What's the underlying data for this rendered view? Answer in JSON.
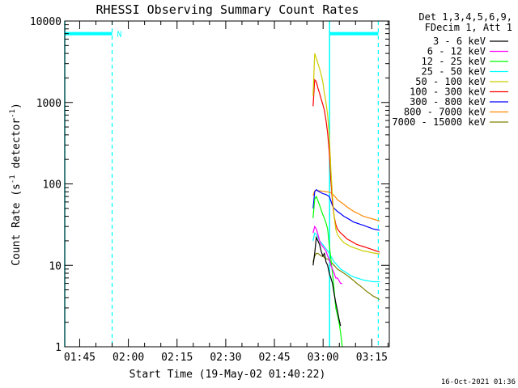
{
  "chart_data": {
    "type": "line",
    "title": "RHESSI Observing Summary Count Rates",
    "xlabel": "Start Time (19-May-02 01:40:22)",
    "ylabel_main": "Count Rate (s",
    "ylabel_sup1": "-1",
    "ylabel_mid": " detector",
    "ylabel_sup2": "-1",
    "ylabel_end": ")",
    "x_unit": "minutes since 01:40:22",
    "xlim": [
      0,
      100
    ],
    "ylim": [
      1,
      10000
    ],
    "yscale": "log",
    "x_ticks": [
      {
        "label": "01:45",
        "value": 4.6
      },
      {
        "label": "02:00",
        "value": 19.6
      },
      {
        "label": "02:15",
        "value": 34.6
      },
      {
        "label": "02:30",
        "value": 49.6
      },
      {
        "label": "02:45",
        "value": 64.6
      },
      {
        "label": "03:00",
        "value": 79.6
      },
      {
        "label": "03:15",
        "value": 94.6
      }
    ],
    "y_ticks": [
      {
        "label": "1",
        "value": 1
      },
      {
        "label": "10",
        "value": 10
      },
      {
        "label": "100",
        "value": 100
      },
      {
        "label": "1000",
        "value": 1000
      },
      {
        "label": "10000",
        "value": 10000
      }
    ],
    "legend_header": [
      "Det 1,3,4,5,6,9,",
      "FDecim 1, Att 1"
    ],
    "legend_position": "right",
    "timestamp": "16-Oct-2021 01:36",
    "flags": {
      "color": "#00ffff",
      "label": "N",
      "bars": [
        {
          "x_start": 0,
          "x_end": 14.6,
          "y": 7000
        },
        {
          "x_start": 81.6,
          "x_end": 96.6,
          "y": 7000
        }
      ],
      "dashed_lines": [
        14.6,
        96.6
      ],
      "solid_lines": [
        0,
        81.6
      ]
    },
    "series": [
      {
        "name": "3 - 6 keV",
        "color": "#000000",
        "x": [
          76.5,
          77,
          77.5,
          78,
          78.5,
          79,
          79.5,
          80,
          80.5,
          81,
          81.5,
          82,
          82.5,
          83,
          83.5,
          84,
          84.5,
          85
        ],
        "y": [
          10,
          14,
          22,
          20,
          18,
          15,
          13,
          14,
          11,
          10,
          8,
          7,
          6,
          4.5,
          3.5,
          2.8,
          2.2,
          1.8
        ]
      },
      {
        "name": "6 - 12 keV",
        "color": "#ff00ff",
        "x": [
          76.5,
          77,
          77.5,
          78,
          78.5,
          79,
          79.5,
          80,
          80.5,
          81,
          81.5,
          82,
          82.5,
          83,
          83.5,
          84,
          84.5,
          85,
          85.5
        ],
        "y": [
          25,
          30,
          28,
          24,
          20,
          18,
          17,
          16,
          15,
          13,
          12,
          10,
          9,
          8,
          7,
          7,
          6.5,
          6,
          6
        ]
      },
      {
        "name": "12 - 25 keV",
        "color": "#00ff00",
        "x": [
          76.5,
          77,
          77.5,
          78,
          78.5,
          79,
          79.5,
          80,
          80.5,
          81,
          81.5,
          82,
          82.5,
          83,
          83.5,
          84,
          84.5,
          85,
          85.5
        ],
        "y": [
          38,
          65,
          70,
          62,
          55,
          48,
          42,
          38,
          33,
          28,
          18,
          12,
          8,
          5,
          3,
          2.5,
          2,
          1.5,
          1
        ]
      },
      {
        "name": "25 - 50 keV",
        "color": "#00ffff",
        "x": [
          76.5,
          77,
          77.5,
          78,
          78.5,
          79,
          79.5,
          80,
          80.5,
          81,
          81.5,
          82,
          82.5,
          83,
          83.5,
          84,
          84.5,
          85,
          86,
          87,
          88,
          89,
          90,
          91,
          92,
          93,
          94,
          95,
          96,
          97
        ],
        "y": [
          20,
          25,
          24,
          22,
          20,
          19,
          18,
          17,
          16,
          15,
          14,
          13,
          12,
          11,
          10.5,
          10,
          9.5,
          9,
          8.5,
          8,
          7.5,
          7.2,
          7,
          6.8,
          6.6,
          6.5,
          6.4,
          6.3,
          6.3,
          6.3
        ]
      },
      {
        "name": "50 - 100 keV",
        "color": "#cccc00",
        "x": [
          76.5,
          77,
          77.5,
          78,
          78.5,
          79,
          79.5,
          80,
          80.5,
          81,
          81.5,
          82,
          82.5,
          83,
          83.5,
          84,
          85,
          86,
          87,
          88,
          89,
          90,
          91,
          92,
          93,
          94,
          95,
          96,
          97
        ],
        "y": [
          1200,
          4000,
          3500,
          3000,
          2600,
          2200,
          1800,
          1300,
          1000,
          700,
          400,
          150,
          70,
          40,
          28,
          24,
          21,
          19,
          18,
          17,
          16.5,
          16,
          15.5,
          15,
          14.8,
          14.5,
          14.2,
          14,
          13.8
        ]
      },
      {
        "name": "100 - 300 keV",
        "color": "#ff0000",
        "x": [
          76.5,
          77,
          77.5,
          78,
          78.5,
          79,
          79.5,
          80,
          80.5,
          81,
          81.5,
          82,
          82.5,
          83,
          83.5,
          84,
          85,
          86,
          87,
          88,
          89,
          90,
          91,
          92,
          93,
          94,
          95,
          96,
          97
        ],
        "y": [
          900,
          1900,
          1800,
          1500,
          1300,
          1100,
          950,
          800,
          600,
          420,
          250,
          110,
          60,
          40,
          32,
          28,
          25,
          23,
          21,
          20,
          19,
          18,
          17.5,
          17,
          16.5,
          16,
          15.5,
          15,
          14.5
        ]
      },
      {
        "name": "300 - 800 keV",
        "color": "#0000ff",
        "x": [
          76.5,
          77,
          77.5,
          78,
          78.5,
          79,
          79.5,
          80,
          80.5,
          81,
          81.5,
          82,
          82.5,
          83,
          83.5,
          84,
          85,
          86,
          87,
          88,
          89,
          90,
          91,
          92,
          93,
          94,
          95,
          96,
          97
        ],
        "y": [
          50,
          80,
          85,
          82,
          80,
          78,
          76,
          75,
          74,
          72,
          70,
          62,
          54,
          50,
          48,
          46,
          43,
          40,
          38,
          36,
          34,
          33,
          32,
          31,
          30,
          29,
          28,
          27.5,
          27
        ]
      },
      {
        "name": "800 - 7000 keV",
        "color": "#ff8800",
        "x": [
          76.5,
          77,
          77.5,
          78,
          78.5,
          79,
          79.5,
          80,
          80.5,
          81,
          81.5,
          82,
          82.5,
          83,
          83.5,
          84,
          85,
          86,
          87,
          88,
          89,
          90,
          91,
          92,
          93,
          94,
          95,
          96,
          97
        ],
        "y": [
          72,
          82,
          84,
          83,
          82,
          82,
          81,
          81,
          80,
          80,
          79,
          78,
          75,
          72,
          68,
          64,
          60,
          56,
          52,
          49,
          46,
          44,
          42,
          40,
          39,
          38,
          37,
          36,
          35
        ]
      },
      {
        "name": "7000 - 15000 keV",
        "color": "#808000",
        "x": [
          76.5,
          77,
          77.5,
          78,
          78.5,
          79,
          79.5,
          80,
          80.5,
          81,
          81.5,
          82,
          82.5,
          83,
          83.5,
          84,
          85,
          86,
          87,
          88,
          89,
          90,
          91,
          92,
          93,
          94,
          95,
          96,
          97
        ],
        "y": [
          11,
          13,
          14,
          14,
          13.5,
          13,
          13,
          12.5,
          12,
          12,
          11.5,
          11,
          10.5,
          10,
          9.5,
          9,
          8.5,
          8,
          7.5,
          7,
          6.5,
          6,
          5.6,
          5.2,
          4.8,
          4.5,
          4.2,
          4,
          3.8
        ]
      }
    ]
  }
}
